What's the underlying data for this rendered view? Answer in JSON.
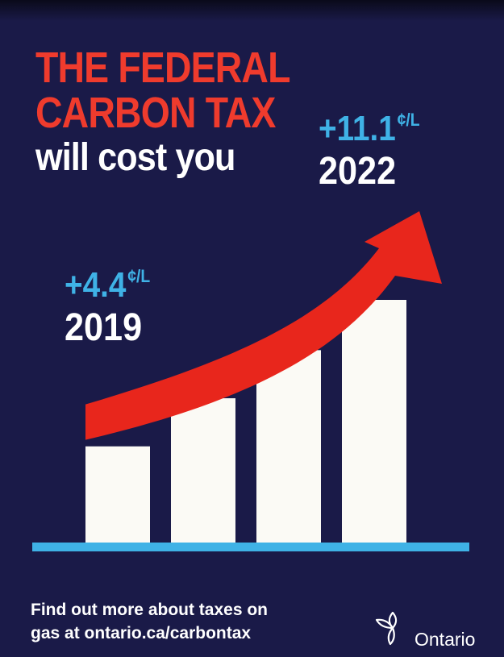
{
  "headline": {
    "line1": "THE FEDERAL",
    "line2": "CARBON TAX",
    "line3": "will cost you"
  },
  "callouts": {
    "start": {
      "amount": "+4.4",
      "unit": "¢/L",
      "year": "2019"
    },
    "end": {
      "amount": "+11.1",
      "unit": "¢/L",
      "year": "2022"
    }
  },
  "chart_data": {
    "type": "bar",
    "categories": [
      "",
      "",
      "",
      ""
    ],
    "values": [
      4.4,
      6.6,
      8.8,
      11.1
    ],
    "ylim": [
      0,
      11.1
    ],
    "bar_color": "#fbfaf5",
    "baseline_color": "#3fb2e6",
    "arrow_color": "#e8261c",
    "annotations": [
      {
        "bar": 0,
        "text": "+4.4¢/L 2019"
      },
      {
        "bar": 3,
        "text": "+11.1¢/L 2022"
      }
    ]
  },
  "footer": {
    "line1": "Find out more about taxes on",
    "line2": "gas at ontario.ca/carbontax"
  },
  "logo": {
    "wordmark": "Ontario",
    "icon": "trillium-icon"
  },
  "colors": {
    "background": "#1a1a48",
    "headline_red": "#ef3b2d",
    "accent_blue": "#3fb2e6",
    "text_white": "#ffffff"
  }
}
